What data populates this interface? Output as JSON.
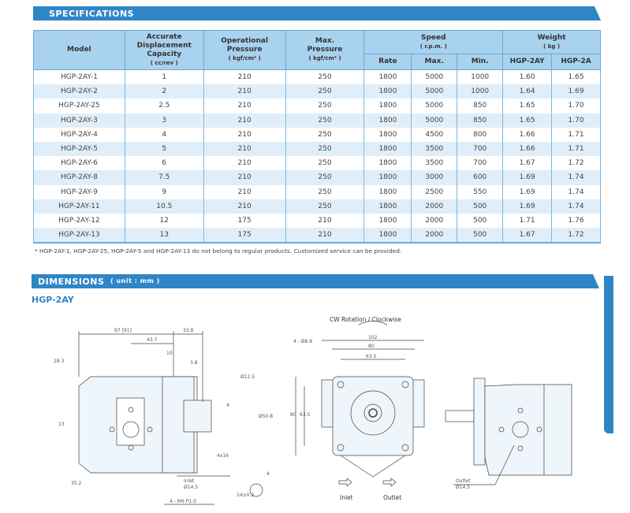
{
  "specifications": {
    "title": "SPECIFICATIONS",
    "headers": {
      "model": "Model",
      "displacement": [
        "Accurate",
        "Displacement",
        "Capacity",
        "( cc/rev )"
      ],
      "op_pressure": [
        "Operational",
        "Pressure",
        "( kgf/cm² )"
      ],
      "max_pressure": [
        "Max.",
        "Pressure",
        "( kgf/cm² )"
      ],
      "speed": [
        "Speed",
        "( r.p.m. )"
      ],
      "speed_sub": [
        "Rate",
        "Max.",
        "Min."
      ],
      "weight": [
        "Weight",
        "( kg )"
      ],
      "weight_sub": [
        "HGP-2AY",
        "HGP-2A"
      ]
    },
    "rows": [
      [
        "HGP-2AY-1",
        "1",
        "210",
        "250",
        "1800",
        "5000",
        "1000",
        "1.60",
        "1.65"
      ],
      [
        "HGP-2AY-2",
        "2",
        "210",
        "250",
        "1800",
        "5000",
        "1000",
        "1.64",
        "1.69"
      ],
      [
        "HGP-2AY-25",
        "2.5",
        "210",
        "250",
        "1800",
        "5000",
        "850",
        "1.65",
        "1.70"
      ],
      [
        "HGP-2AY-3",
        "3",
        "210",
        "250",
        "1800",
        "5000",
        "850",
        "1.65",
        "1.70"
      ],
      [
        "HGP-2AY-4",
        "4",
        "210",
        "250",
        "1800",
        "4500",
        "800",
        "1.66",
        "1.71"
      ],
      [
        "HGP-2AY-5",
        "5",
        "210",
        "250",
        "1800",
        "3500",
        "700",
        "1.66",
        "1.71"
      ],
      [
        "HGP-2AY-6",
        "6",
        "210",
        "250",
        "1800",
        "3500",
        "700",
        "1.67",
        "1.72"
      ],
      [
        "HGP-2AY-8",
        "7.5",
        "210",
        "250",
        "1800",
        "3000",
        "600",
        "1.69",
        "1.74"
      ],
      [
        "HGP-2AY-9",
        "9",
        "210",
        "250",
        "1800",
        "2500",
        "550",
        "1.69",
        "1.74"
      ],
      [
        "HGP-2AY-11",
        "10.5",
        "210",
        "250",
        "1800",
        "2000",
        "500",
        "1.69",
        "1.74"
      ],
      [
        "HGP-2AY-12",
        "12",
        "175",
        "210",
        "1800",
        "2000",
        "500",
        "1.71",
        "1.76"
      ],
      [
        "HGP-2AY-13",
        "13",
        "175",
        "210",
        "1800",
        "2000",
        "500",
        "1.67",
        "1.72"
      ]
    ],
    "note": "* HGP-2AY-1, HGP-2AY-25, HGP-2AY-5 and HGP-2AY-13 do not belong to regular products. Customized service can be provided."
  },
  "dimensions": {
    "title": "DIMENSIONS",
    "unit": "( unit : mm )",
    "model": "HGP-2AY",
    "side_labels": {
      "d1": "97 [91]",
      "d2": "33.8",
      "d3": "43.7",
      "d4": "10",
      "d5": "3.8",
      "d6": "28.3",
      "d7": "13",
      "d8": "35.2",
      "d9": "Ø12.5",
      "d10": "Ø50.8",
      "d11": "4",
      "d12": "4x16",
      "inlet": "Inlet",
      "inlet_d": "Ø14.5",
      "thread": "4 - M6  P1.0",
      "key_h": "14±0.2",
      "key_w": "4"
    },
    "front_labels": {
      "rotation": "CW Rotation / Clockwise",
      "holes": "4 - Ø8.8",
      "w1": "102",
      "w2": "80",
      "w3": "63.5",
      "h1": "80",
      "h2": "63.5",
      "inlet": "Inlet",
      "outlet": "Outlet"
    },
    "rear_labels": {
      "outlet": "Outlet",
      "outlet_d": "Ø14.5"
    }
  },
  "colors": {
    "accent": "#2f86c6",
    "header_bg": "#a9d2ee",
    "stripe": "#dfeef9"
  }
}
